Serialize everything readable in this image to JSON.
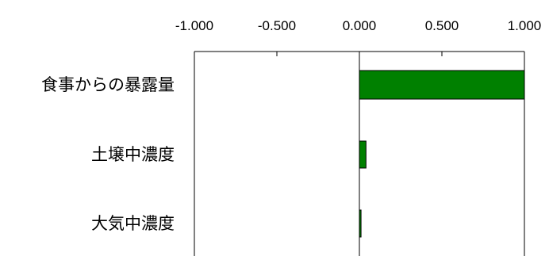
{
  "chart_data": {
    "type": "bar",
    "orientation": "horizontal",
    "categories": [
      "食事からの暴露量",
      "土壌中濃度",
      "大気中濃度"
    ],
    "values": [
      1.0,
      0.04,
      0.01
    ],
    "xlim": [
      -1.0,
      1.0
    ],
    "x_ticks": [
      -1.0,
      -0.5,
      0.0,
      0.5,
      1.0
    ],
    "x_tick_labels": [
      "-1.000",
      "-0.500",
      "0.000",
      "0.500",
      "1.000"
    ],
    "x_axis_position": "top",
    "grid": false,
    "legend": "none",
    "bar_color": "#008000",
    "bar_border_color": "#000000"
  }
}
